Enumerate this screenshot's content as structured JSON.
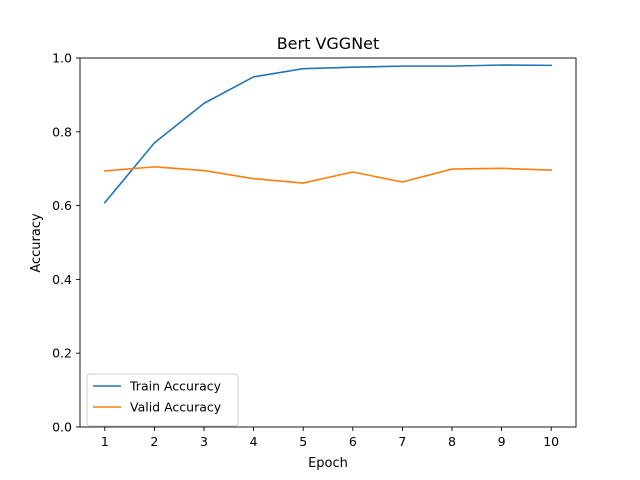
{
  "chart_data": {
    "type": "line",
    "title": "Bert VGGNet",
    "xlabel": "Epoch",
    "ylabel": "Accuracy",
    "x": [
      1,
      2,
      3,
      4,
      5,
      6,
      7,
      8,
      9,
      10
    ],
    "xticks": [
      "1",
      "2",
      "3",
      "4",
      "5",
      "6",
      "7",
      "8",
      "9",
      "10"
    ],
    "xlim": [
      0.5,
      10.5
    ],
    "ylim": [
      0.0,
      1.0
    ],
    "yticks": [
      "0.0",
      "0.2",
      "0.4",
      "0.6",
      "0.8",
      "1.0"
    ],
    "grid": false,
    "legend_position": "lower-left",
    "series": [
      {
        "name": "Train Accuracy",
        "color": "#1f77b4",
        "values": [
          0.608,
          0.77,
          0.877,
          0.949,
          0.971,
          0.975,
          0.978,
          0.978,
          0.981,
          0.98
        ]
      },
      {
        "name": "Valid Accuracy",
        "color": "#ff7f0e",
        "values": [
          0.694,
          0.705,
          0.695,
          0.673,
          0.661,
          0.691,
          0.664,
          0.699,
          0.701,
          0.696
        ]
      }
    ]
  }
}
